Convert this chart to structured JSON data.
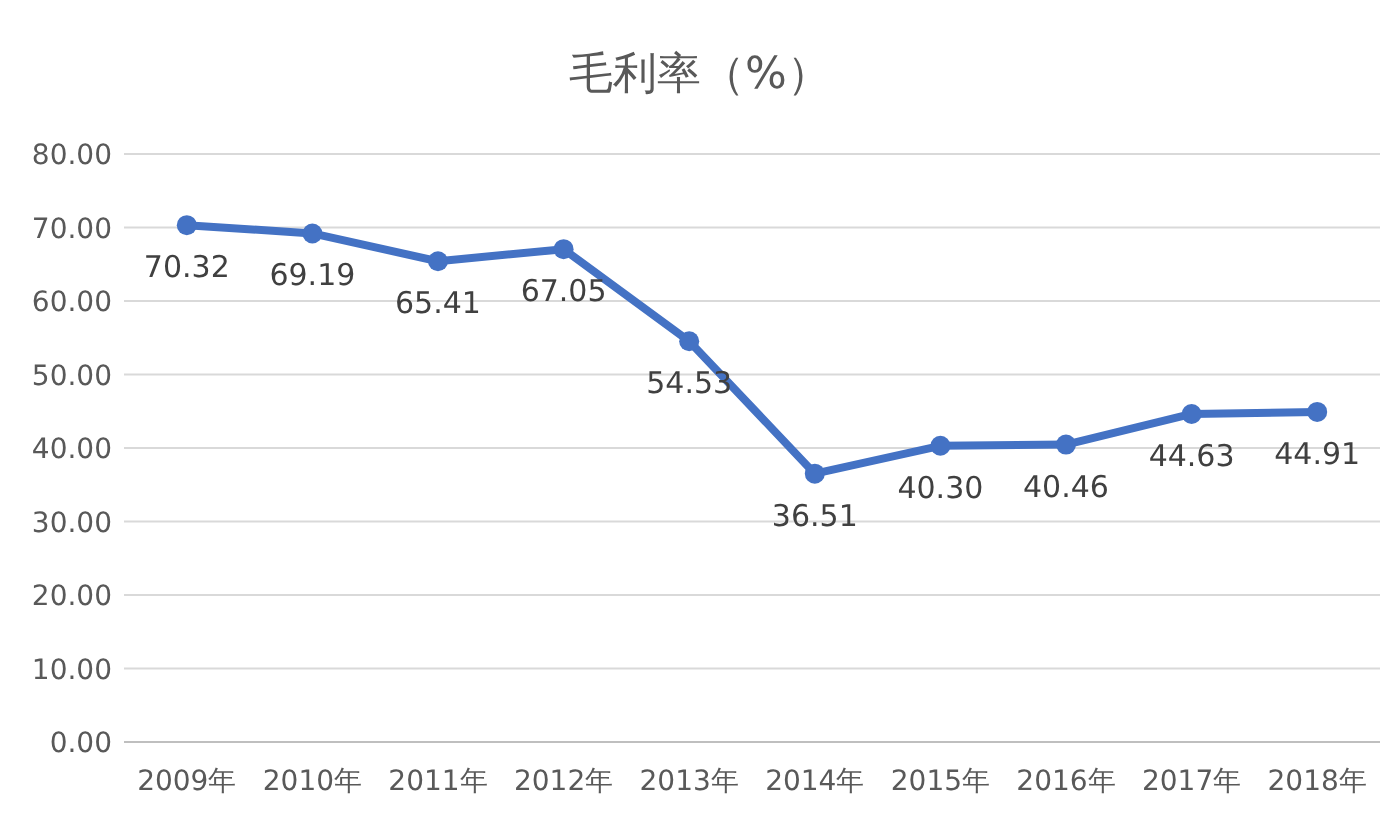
{
  "chart_data": {
    "type": "line",
    "title": "毛利率（%）",
    "categories": [
      "2009年",
      "2010年",
      "2011年",
      "2012年",
      "2013年",
      "2014年",
      "2015年",
      "2016年",
      "2017年",
      "2018年"
    ],
    "series": [
      {
        "color": "#4472c4",
        "values": [
          70.32,
          69.19,
          65.41,
          67.05,
          54.53,
          36.51,
          40.3,
          40.46,
          44.63,
          44.91
        ],
        "value_labels": [
          "70.32",
          "69.19",
          "65.41",
          "67.05",
          "54.53",
          "36.51",
          "40.30",
          "40.46",
          "44.63",
          "44.91"
        ]
      }
    ],
    "ylim": [
      0,
      80
    ],
    "yticks": [
      {
        "value": 0,
        "label": "0.00"
      },
      {
        "value": 10,
        "label": "10.00"
      },
      {
        "value": 20,
        "label": "20.00"
      },
      {
        "value": 30,
        "label": "30.00"
      },
      {
        "value": 40,
        "label": "40.00"
      },
      {
        "value": 50,
        "label": "50.00"
      },
      {
        "value": 60,
        "label": "60.00"
      },
      {
        "value": 70,
        "label": "70.00"
      },
      {
        "value": 80,
        "label": "80.00"
      }
    ],
    "grid": "y",
    "marker": "circle",
    "line_style": "solid"
  }
}
